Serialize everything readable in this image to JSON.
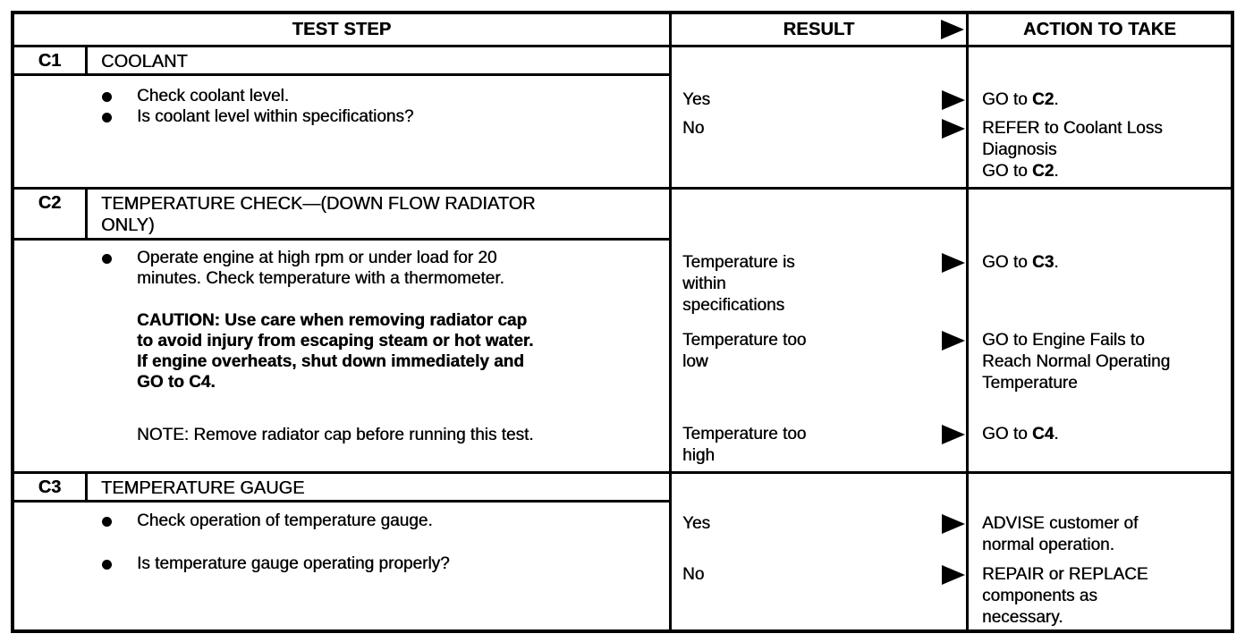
{
  "colors": {
    "ink": "#000000",
    "paper": "#ffffff"
  },
  "icons": {
    "result_arrow": "filled-right-triangle",
    "bullet": "filled-circle"
  },
  "table": {
    "headers": {
      "test_step": "TEST STEP",
      "result": "RESULT",
      "action": "ACTION TO TAKE"
    },
    "sections": [
      {
        "number": "C1",
        "title_lines": [
          "COOLANT"
        ],
        "body": [
          {
            "type": "bullet",
            "lines": [
              "Check coolant level."
            ]
          },
          {
            "type": "bullet",
            "lines": [
              "Is coolant level within specifications?"
            ]
          }
        ],
        "pairs": [
          {
            "result_lines": [
              "Yes"
            ],
            "action_lines": [
              "GO to C2."
            ]
          },
          {
            "result_lines": [
              "No"
            ],
            "action_lines": [
              "REFER to Coolant Loss",
              "Diagnosis",
              "GO to C2."
            ]
          }
        ]
      },
      {
        "number": "C2",
        "title_lines": [
          "TEMPERATURE CHECK—(DOWN FLOW RADIATOR",
          "ONLY)"
        ],
        "body": [
          {
            "type": "bullet",
            "lines": [
              "Operate engine at high rpm or under load for 20",
              "minutes. Check temperature with a thermometer."
            ]
          },
          {
            "type": "caution",
            "lines": [
              "CAUTION: Use care when removing radiator cap",
              "to avoid injury from escaping steam or hot water.",
              "If engine overheats, shut down immediately and",
              "GO to C4."
            ]
          },
          {
            "type": "note",
            "lines": [
              "NOTE: Remove radiator cap before running this test."
            ]
          }
        ],
        "pairs": [
          {
            "result_lines": [
              "Temperature is",
              "within",
              "specifications"
            ],
            "action_lines": [
              "GO to C3."
            ]
          },
          {
            "result_lines": [
              "Temperature too",
              "low"
            ],
            "action_lines": [
              "GO to Engine Fails to",
              "Reach Normal Operating",
              "Temperature"
            ]
          },
          {
            "result_lines": [
              "Temperature too",
              "high"
            ],
            "action_lines": [
              "GO to C4."
            ]
          }
        ]
      },
      {
        "number": "C3",
        "title_lines": [
          "TEMPERATURE GAUGE"
        ],
        "body": [
          {
            "type": "bullet",
            "lines": [
              "Check operation of temperature gauge."
            ]
          },
          {
            "type": "bullet",
            "lines": [
              "Is temperature gauge operating properly?"
            ]
          }
        ],
        "pairs": [
          {
            "result_lines": [
              "Yes"
            ],
            "action_lines": [
              "ADVISE customer of",
              "normal operation."
            ]
          },
          {
            "result_lines": [
              "No"
            ],
            "action_lines": [
              "REPAIR or REPLACE",
              "components as",
              "necessary."
            ]
          }
        ]
      }
    ]
  }
}
